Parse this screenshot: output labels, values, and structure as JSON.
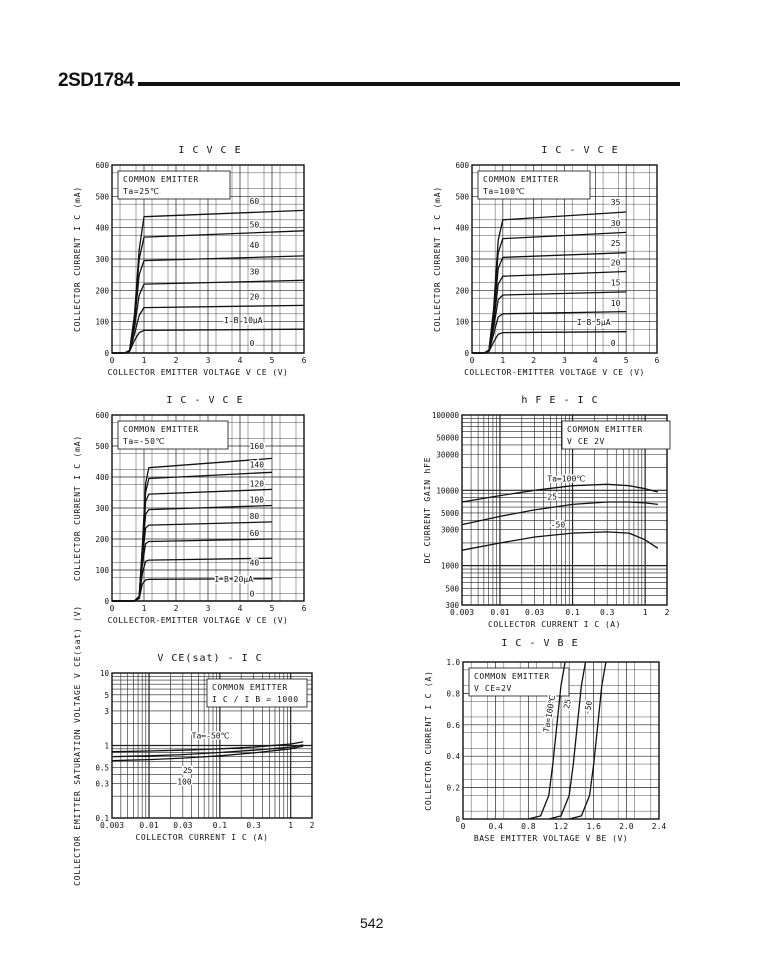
{
  "header": {
    "part_number": "2SD1784",
    "page_number": "542"
  },
  "chart_data": [
    {
      "id": "ic-vce-25",
      "type": "line",
      "title": "I C  V C E",
      "xlabel": "COLLECTOR EMITTER VOLTAGE  V CE  (V)",
      "ylabel": "COLLECTOR CURRENT  I C  (mA)",
      "xlim": [
        0,
        6
      ],
      "ylim": [
        0,
        600
      ],
      "x_ticks": [
        "0",
        "1",
        "2",
        "3",
        "4",
        "5",
        "6"
      ],
      "y_ticks": [
        "0",
        "100",
        "200",
        "300",
        "400",
        "500",
        "600"
      ],
      "grid": true,
      "legend_text": [
        "COMMON EMITTER",
        "Ta=25℃"
      ],
      "series": [
        {
          "name": "60",
          "x": [
            0,
            0.4,
            0.55,
            0.7,
            0.85,
            1.0,
            6
          ],
          "y": [
            0,
            0,
            8,
            120,
            330,
            435,
            455
          ]
        },
        {
          "name": "50",
          "x": [
            0,
            0.4,
            0.55,
            0.7,
            0.85,
            1.0,
            6
          ],
          "y": [
            0,
            0,
            8,
            110,
            300,
            370,
            390
          ]
        },
        {
          "name": "40",
          "x": [
            0,
            0.4,
            0.55,
            0.7,
            0.85,
            1.0,
            6
          ],
          "y": [
            0,
            0,
            8,
            95,
            250,
            295,
            310
          ]
        },
        {
          "name": "30",
          "x": [
            0,
            0.4,
            0.55,
            0.7,
            0.85,
            1.0,
            6
          ],
          "y": [
            0,
            0,
            8,
            80,
            185,
            220,
            232
          ]
        },
        {
          "name": "20",
          "x": [
            0,
            0.4,
            0.55,
            0.7,
            0.85,
            1.0,
            6
          ],
          "y": [
            0,
            0,
            6,
            60,
            120,
            145,
            152
          ]
        },
        {
          "name": "IB 10μA",
          "x": [
            0,
            0.4,
            0.55,
            0.7,
            0.85,
            1.0,
            6
          ],
          "y": [
            0,
            0,
            5,
            40,
            65,
            72,
            76
          ]
        },
        {
          "name": "0",
          "x": [
            0,
            6
          ],
          "y": [
            0,
            0
          ]
        }
      ],
      "curve_labels": [
        {
          "text": "60",
          "x": 4.3,
          "y": 475
        },
        {
          "text": "50",
          "x": 4.3,
          "y": 400
        },
        {
          "text": "40",
          "x": 4.3,
          "y": 335
        },
        {
          "text": "30",
          "x": 4.3,
          "y": 250
        },
        {
          "text": "20",
          "x": 4.3,
          "y": 170
        },
        {
          "text": "I B  10μA",
          "x": 3.5,
          "y": 95
        },
        {
          "text": "0",
          "x": 4.3,
          "y": 22
        }
      ]
    },
    {
      "id": "ic-vce-100",
      "type": "line",
      "title": "I C - V C E",
      "xlabel": "COLLECTOR-EMITTER VOLTAGE  V CE  (V)",
      "ylabel": "COLLECTOR CURRENT  I C  (mA)",
      "xlim": [
        0,
        6
      ],
      "ylim": [
        0,
        600
      ],
      "x_ticks": [
        "0",
        "1",
        "2",
        "3",
        "4",
        "5",
        "6"
      ],
      "y_ticks": [
        "0",
        "100",
        "200",
        "300",
        "400",
        "500",
        "600"
      ],
      "grid": true,
      "legend_text": [
        "COMMON EMITTER",
        "Ta=100℃"
      ],
      "series": [
        {
          "name": "35",
          "x": [
            0,
            0.4,
            0.55,
            0.7,
            0.85,
            1.0,
            5
          ],
          "y": [
            0,
            0,
            10,
            140,
            360,
            425,
            450
          ]
        },
        {
          "name": "30",
          "x": [
            0,
            0.4,
            0.55,
            0.7,
            0.85,
            1.0,
            5
          ],
          "y": [
            0,
            0,
            10,
            130,
            320,
            365,
            385
          ]
        },
        {
          "name": "25",
          "x": [
            0,
            0.4,
            0.55,
            0.7,
            0.85,
            1.0,
            5
          ],
          "y": [
            0,
            0,
            9,
            110,
            270,
            305,
            320
          ]
        },
        {
          "name": "20",
          "x": [
            0,
            0.4,
            0.55,
            0.7,
            0.85,
            1.0,
            5
          ],
          "y": [
            0,
            0,
            8,
            95,
            220,
            245,
            260
          ]
        },
        {
          "name": "15",
          "x": [
            0,
            0.4,
            0.55,
            0.7,
            0.85,
            1.0,
            5
          ],
          "y": [
            0,
            0,
            7,
            80,
            170,
            185,
            195
          ]
        },
        {
          "name": "10",
          "x": [
            0,
            0.4,
            0.55,
            0.7,
            0.85,
            1.0,
            5
          ],
          "y": [
            0,
            0,
            6,
            60,
            115,
            125,
            132
          ]
        },
        {
          "name": "IB 5μA",
          "x": [
            0,
            0.4,
            0.55,
            0.7,
            0.85,
            1.0,
            5
          ],
          "y": [
            0,
            0,
            5,
            35,
            60,
            65,
            68
          ]
        },
        {
          "name": "0",
          "x": [
            0,
            5
          ],
          "y": [
            0,
            0
          ]
        }
      ],
      "curve_labels": [
        {
          "text": "35",
          "x": 4.5,
          "y": 472
        },
        {
          "text": "30",
          "x": 4.5,
          "y": 405
        },
        {
          "text": "25",
          "x": 4.5,
          "y": 342
        },
        {
          "text": "20",
          "x": 4.5,
          "y": 280
        },
        {
          "text": "15",
          "x": 4.5,
          "y": 215
        },
        {
          "text": "10",
          "x": 4.5,
          "y": 150
        },
        {
          "text": "I B  5μA",
          "x": 3.4,
          "y": 90
        },
        {
          "text": "0",
          "x": 4.5,
          "y": 22
        }
      ]
    },
    {
      "id": "ic-vce-m50",
      "type": "line",
      "title": "I C - V C E",
      "xlabel": "COLLECTOR-EMITTER VOLTAGE  V CE  (V)",
      "ylabel": "COLLECTOR CURRENT  I C  (mA)",
      "xlim": [
        0,
        6
      ],
      "ylim": [
        0,
        600
      ],
      "x_ticks": [
        "0",
        "1",
        "2",
        "3",
        "4",
        "5",
        "6"
      ],
      "y_ticks": [
        "0",
        "100",
        "200",
        "300",
        "400",
        "500",
        "600"
      ],
      "grid": true,
      "legend_text": [
        "COMMON EMITTER",
        "Ta=-50℃"
      ],
      "series": [
        {
          "name": "160",
          "x": [
            0,
            0.7,
            0.85,
            0.95,
            1.05,
            1.15,
            5
          ],
          "y": [
            0,
            0,
            15,
            180,
            380,
            430,
            460
          ]
        },
        {
          "name": "140",
          "x": [
            0,
            0.7,
            0.85,
            0.95,
            1.05,
            1.15,
            5
          ],
          "y": [
            0,
            0,
            15,
            170,
            350,
            395,
            415
          ]
        },
        {
          "name": "120",
          "x": [
            0,
            0.7,
            0.85,
            0.95,
            1.05,
            1.15,
            5
          ],
          "y": [
            0,
            0,
            14,
            160,
            320,
            345,
            360
          ]
        },
        {
          "name": "100",
          "x": [
            0,
            0.7,
            0.85,
            0.95,
            1.05,
            1.15,
            5
          ],
          "y": [
            0,
            0,
            13,
            150,
            280,
            295,
            308
          ]
        },
        {
          "name": "80",
          "x": [
            0,
            0.7,
            0.85,
            0.95,
            1.05,
            1.15,
            5
          ],
          "y": [
            0,
            0,
            12,
            140,
            235,
            245,
            255
          ]
        },
        {
          "name": "60",
          "x": [
            0,
            0.7,
            0.85,
            0.95,
            1.05,
            1.15,
            5
          ],
          "y": [
            0,
            0,
            11,
            120,
            185,
            192,
            200
          ]
        },
        {
          "name": "40",
          "x": [
            0,
            0.7,
            0.85,
            0.95,
            1.05,
            1.15,
            5
          ],
          "y": [
            0,
            0,
            10,
            90,
            128,
            132,
            138
          ]
        },
        {
          "name": "IB 20μA",
          "x": [
            0,
            0.7,
            0.85,
            0.95,
            1.05,
            1.15,
            5
          ],
          "y": [
            0,
            0,
            8,
            55,
            68,
            70,
            72
          ]
        },
        {
          "name": "0",
          "x": [
            0,
            5
          ],
          "y": [
            0,
            0
          ]
        }
      ],
      "curve_labels": [
        {
          "text": "160",
          "x": 4.3,
          "y": 490
        },
        {
          "text": "140",
          "x": 4.3,
          "y": 430
        },
        {
          "text": "120",
          "x": 4.3,
          "y": 370
        },
        {
          "text": "100",
          "x": 4.3,
          "y": 318
        },
        {
          "text": "80",
          "x": 4.3,
          "y": 265
        },
        {
          "text": "60",
          "x": 4.3,
          "y": 210
        },
        {
          "text": "40",
          "x": 4.3,
          "y": 115
        },
        {
          "text": "I B  20μA",
          "x": 3.2,
          "y": 62
        },
        {
          "text": "0",
          "x": 4.3,
          "y": 15
        }
      ]
    },
    {
      "id": "hfe-ic",
      "type": "line",
      "title": "h F E  -  I C",
      "xlabel": "COLLECTOR  CURRENT   I C  (A)",
      "ylabel": "DC CURRENT GAIN   hFE",
      "xscale": "log",
      "yscale": "log",
      "xlim": [
        0.003,
        2
      ],
      "ylim": [
        300,
        100000
      ],
      "x_ticks": [
        "0.003",
        "0.01",
        "0.03",
        "0.1",
        "0.3",
        "1",
        "2"
      ],
      "y_ticks": [
        "300",
        "500",
        "1000",
        "3000",
        "5000",
        "10000",
        "30000",
        "50000",
        "100000"
      ],
      "grid": true,
      "legend_text": [
        "COMMON EMITTER",
        "V CE  2V"
      ],
      "series": [
        {
          "name": "Ta=100℃",
          "x": [
            0.003,
            0.01,
            0.03,
            0.1,
            0.3,
            0.6,
            1,
            1.5
          ],
          "y": [
            7000,
            8500,
            10000,
            11500,
            12000,
            11500,
            10500,
            9500
          ]
        },
        {
          "name": "25",
          "x": [
            0.003,
            0.01,
            0.03,
            0.1,
            0.3,
            0.6,
            1,
            1.5
          ],
          "y": [
            3500,
            4500,
            5500,
            6500,
            7000,
            7000,
            6800,
            6500
          ]
        },
        {
          "name": "-50",
          "x": [
            0.003,
            0.01,
            0.03,
            0.1,
            0.3,
            0.6,
            1,
            1.5
          ],
          "y": [
            1600,
            2000,
            2400,
            2700,
            2800,
            2700,
            2200,
            1700
          ]
        }
      ],
      "curve_labels": [
        {
          "text": "Ta=100℃",
          "x": 0.045,
          "y": 13000
        },
        {
          "text": "25",
          "x": 0.045,
          "y": 7500
        },
        {
          "text": "-50",
          "x": 0.05,
          "y": 3200
        }
      ]
    },
    {
      "id": "vcesat-ic",
      "type": "line",
      "title": "V CE(sat) - I C",
      "xlabel": "COLLECTOR  CURRENT   I C  (A)",
      "ylabel": "COLLECTOR EMITTER SATURATION VOLTAGE  V CE(sat)  (V)",
      "xscale": "log",
      "yscale": "log",
      "xlim": [
        0.003,
        2
      ],
      "ylim": [
        0.1,
        10
      ],
      "x_ticks": [
        "0.003",
        "0.01",
        "0.03",
        "0.1",
        "0.3",
        "1",
        "2"
      ],
      "y_ticks": [
        "0.1",
        "0.3",
        "0.5",
        "1",
        "3",
        "5",
        "10"
      ],
      "grid": true,
      "legend_text": [
        "COMMON EMITTER",
        "I C / I B = 1000"
      ],
      "series": [
        {
          "name": "Ta=-50℃",
          "x": [
            0.003,
            0.01,
            0.03,
            0.1,
            0.3,
            1,
            1.5
          ],
          "y": [
            0.82,
            0.84,
            0.86,
            0.9,
            0.95,
            1.05,
            1.12
          ]
        },
        {
          "name": "25",
          "x": [
            0.003,
            0.01,
            0.03,
            0.1,
            0.3,
            1,
            1.5
          ],
          "y": [
            0.7,
            0.72,
            0.75,
            0.8,
            0.86,
            0.95,
            1.02
          ]
        },
        {
          "name": "100",
          "x": [
            0.003,
            0.01,
            0.03,
            0.1,
            0.3,
            1,
            1.5
          ],
          "y": [
            0.62,
            0.64,
            0.67,
            0.72,
            0.79,
            0.9,
            0.98
          ]
        }
      ],
      "curve_labels": [
        {
          "text": "Ta=-50℃",
          "x": 0.04,
          "y": 1.25
        },
        {
          "text": "25",
          "x": 0.03,
          "y": 0.42
        },
        {
          "text": "100",
          "x": 0.025,
          "y": 0.29
        }
      ]
    },
    {
      "id": "ic-vbe",
      "type": "line",
      "title": "I C - V B E",
      "xlabel": "BASE EMITTER VOLTAGE   V BE  (V)",
      "ylabel": "COLLECTOR CURRENT   I C  (A)",
      "xlim": [
        0,
        2.4
      ],
      "ylim": [
        0,
        1.0
      ],
      "x_ticks": [
        "0",
        "0.4",
        "0.8",
        "1.2",
        "1.6",
        "2.0",
        "2.4"
      ],
      "y_ticks": [
        "0",
        "0.2",
        "0.4",
        "0.6",
        "0.8",
        "1.0"
      ],
      "grid": true,
      "legend_text": [
        "COMMON EMITTER",
        "V CE=2V"
      ],
      "series": [
        {
          "name": "Ta=100℃",
          "x": [
            0.8,
            0.95,
            1.05,
            1.1,
            1.15,
            1.2,
            1.25
          ],
          "y": [
            0,
            0.02,
            0.15,
            0.35,
            0.6,
            0.85,
            1.0
          ]
        },
        {
          "name": "25",
          "x": [
            1.05,
            1.2,
            1.3,
            1.35,
            1.4,
            1.45,
            1.5
          ],
          "y": [
            0,
            0.02,
            0.15,
            0.35,
            0.6,
            0.85,
            1.0
          ]
        },
        {
          "name": "-50",
          "x": [
            1.3,
            1.45,
            1.55,
            1.6,
            1.65,
            1.7,
            1.75
          ],
          "y": [
            0,
            0.02,
            0.15,
            0.35,
            0.6,
            0.85,
            1.0
          ]
        }
      ],
      "curve_labels": [
        {
          "text": "Ta=100℃",
          "x": 1.05,
          "y": 0.55,
          "rotate": -80
        },
        {
          "text": "25",
          "x": 1.3,
          "y": 0.7,
          "rotate": -80
        },
        {
          "text": "-50",
          "x": 1.55,
          "y": 0.66,
          "rotate": -80
        }
      ]
    }
  ]
}
